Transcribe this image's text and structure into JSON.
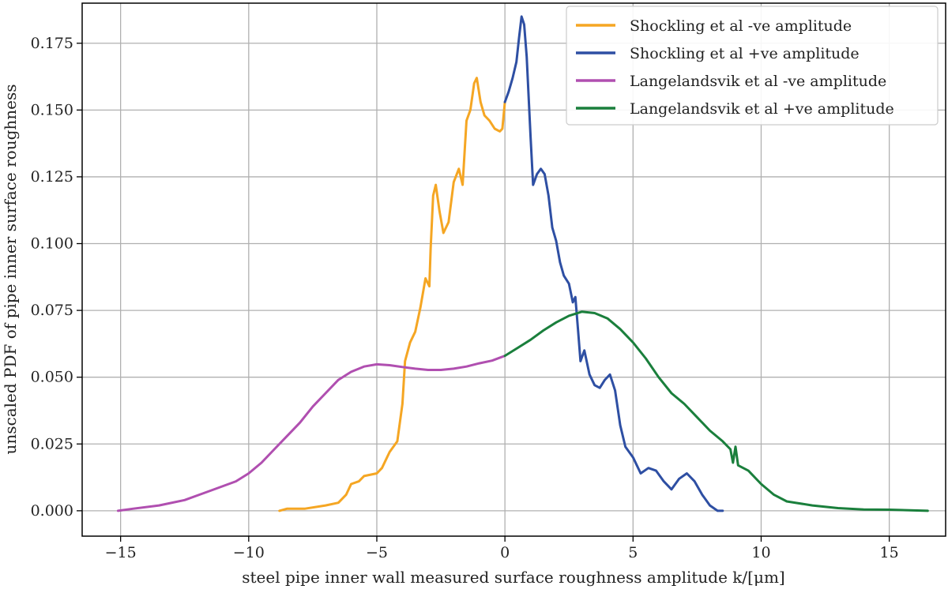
{
  "chart_data": {
    "type": "line",
    "xlabel": "steel pipe inner wall measured surface roughness amplitude k/[μm]",
    "ylabel": "unscaled PDF of pipe inner surface roughness",
    "xlim": [
      -16.5,
      17.2
    ],
    "ylim": [
      -0.0095,
      0.19
    ],
    "xticks": [
      -15,
      -10,
      -5,
      0,
      5,
      10,
      15
    ],
    "xtick_labels": [
      "−15",
      "−10",
      "−5",
      "0",
      "5",
      "10",
      "15"
    ],
    "yticks": [
      0.0,
      0.025,
      0.05,
      0.075,
      0.1,
      0.125,
      0.15,
      0.175
    ],
    "ytick_labels": [
      "0.000",
      "0.025",
      "0.050",
      "0.075",
      "0.100",
      "0.125",
      "0.150",
      "0.175"
    ],
    "grid": true,
    "legend_position": "top-right",
    "series": [
      {
        "name": "Shockling et al -ve amplitude",
        "color": "#f5a623",
        "points": [
          [
            -8.8,
            0.0
          ],
          [
            -8.5,
            0.0008
          ],
          [
            -7.8,
            0.0008
          ],
          [
            -7.0,
            0.002
          ],
          [
            -6.5,
            0.003
          ],
          [
            -6.2,
            0.006
          ],
          [
            -6.0,
            0.01
          ],
          [
            -5.7,
            0.011
          ],
          [
            -5.5,
            0.013
          ],
          [
            -5.0,
            0.014
          ],
          [
            -4.8,
            0.016
          ],
          [
            -4.5,
            0.022
          ],
          [
            -4.2,
            0.026
          ],
          [
            -4.0,
            0.04
          ],
          [
            -3.9,
            0.056
          ],
          [
            -3.7,
            0.063
          ],
          [
            -3.5,
            0.067
          ],
          [
            -3.3,
            0.076
          ],
          [
            -3.1,
            0.087
          ],
          [
            -2.95,
            0.084
          ],
          [
            -2.9,
            0.098
          ],
          [
            -2.8,
            0.118
          ],
          [
            -2.7,
            0.122
          ],
          [
            -2.55,
            0.112
          ],
          [
            -2.4,
            0.104
          ],
          [
            -2.2,
            0.108
          ],
          [
            -2.0,
            0.123
          ],
          [
            -1.8,
            0.128
          ],
          [
            -1.65,
            0.122
          ],
          [
            -1.5,
            0.146
          ],
          [
            -1.35,
            0.15
          ],
          [
            -1.2,
            0.16
          ],
          [
            -1.1,
            0.162
          ],
          [
            -0.95,
            0.153
          ],
          [
            -0.8,
            0.148
          ],
          [
            -0.6,
            0.146
          ],
          [
            -0.4,
            0.143
          ],
          [
            -0.2,
            0.142
          ],
          [
            -0.1,
            0.143
          ],
          [
            0.0,
            0.153
          ]
        ]
      },
      {
        "name": "Shockling et al +ve amplitude",
        "color": "#2e4fa3",
        "points": [
          [
            0.0,
            0.153
          ],
          [
            0.15,
            0.157
          ],
          [
            0.3,
            0.162
          ],
          [
            0.45,
            0.168
          ],
          [
            0.55,
            0.177
          ],
          [
            0.65,
            0.185
          ],
          [
            0.75,
            0.182
          ],
          [
            0.85,
            0.17
          ],
          [
            1.0,
            0.14
          ],
          [
            1.1,
            0.122
          ],
          [
            1.25,
            0.126
          ],
          [
            1.4,
            0.128
          ],
          [
            1.55,
            0.126
          ],
          [
            1.7,
            0.118
          ],
          [
            1.85,
            0.106
          ],
          [
            2.0,
            0.101
          ],
          [
            2.15,
            0.093
          ],
          [
            2.3,
            0.088
          ],
          [
            2.5,
            0.085
          ],
          [
            2.65,
            0.078
          ],
          [
            2.75,
            0.08
          ],
          [
            2.85,
            0.068
          ],
          [
            2.95,
            0.056
          ],
          [
            3.1,
            0.06
          ],
          [
            3.3,
            0.051
          ],
          [
            3.5,
            0.047
          ],
          [
            3.7,
            0.046
          ],
          [
            3.9,
            0.049
          ],
          [
            4.1,
            0.051
          ],
          [
            4.3,
            0.045
          ],
          [
            4.5,
            0.032
          ],
          [
            4.7,
            0.024
          ],
          [
            5.0,
            0.02
          ],
          [
            5.3,
            0.014
          ],
          [
            5.6,
            0.016
          ],
          [
            5.9,
            0.015
          ],
          [
            6.2,
            0.011
          ],
          [
            6.5,
            0.008
          ],
          [
            6.8,
            0.012
          ],
          [
            7.1,
            0.014
          ],
          [
            7.4,
            0.011
          ],
          [
            7.7,
            0.006
          ],
          [
            8.0,
            0.002
          ],
          [
            8.3,
            0.0
          ],
          [
            8.5,
            0.0
          ]
        ]
      },
      {
        "name": "Langelandsvik et al -ve amplitude",
        "color": "#b04fb0",
        "points": [
          [
            -15.1,
            0.0
          ],
          [
            -14.5,
            0.0008
          ],
          [
            -13.5,
            0.002
          ],
          [
            -12.5,
            0.004
          ],
          [
            -11.5,
            0.0075
          ],
          [
            -10.5,
            0.011
          ],
          [
            -10.0,
            0.014
          ],
          [
            -9.5,
            0.018
          ],
          [
            -9.0,
            0.023
          ],
          [
            -8.5,
            0.028
          ],
          [
            -8.0,
            0.033
          ],
          [
            -7.5,
            0.039
          ],
          [
            -7.0,
            0.044
          ],
          [
            -6.5,
            0.049
          ],
          [
            -6.0,
            0.052
          ],
          [
            -5.5,
            0.054
          ],
          [
            -5.0,
            0.0548
          ],
          [
            -4.5,
            0.0545
          ],
          [
            -4.0,
            0.0538
          ],
          [
            -3.5,
            0.0532
          ],
          [
            -3.0,
            0.0527
          ],
          [
            -2.5,
            0.0527
          ],
          [
            -2.0,
            0.0532
          ],
          [
            -1.5,
            0.054
          ],
          [
            -1.0,
            0.0552
          ],
          [
            -0.5,
            0.0562
          ],
          [
            0.0,
            0.058
          ]
        ]
      },
      {
        "name": "Langelandsvik et al +ve amplitude",
        "color": "#1a7f3c",
        "points": [
          [
            0.0,
            0.058
          ],
          [
            0.5,
            0.061
          ],
          [
            1.0,
            0.064
          ],
          [
            1.5,
            0.0675
          ],
          [
            2.0,
            0.0705
          ],
          [
            2.5,
            0.073
          ],
          [
            3.0,
            0.0745
          ],
          [
            3.5,
            0.074
          ],
          [
            4.0,
            0.072
          ],
          [
            4.5,
            0.068
          ],
          [
            5.0,
            0.063
          ],
          [
            5.5,
            0.057
          ],
          [
            6.0,
            0.05
          ],
          [
            6.5,
            0.044
          ],
          [
            7.0,
            0.04
          ],
          [
            7.5,
            0.035
          ],
          [
            8.0,
            0.03
          ],
          [
            8.5,
            0.026
          ],
          [
            8.8,
            0.023
          ],
          [
            8.9,
            0.018
          ],
          [
            9.0,
            0.024
          ],
          [
            9.1,
            0.017
          ],
          [
            9.5,
            0.015
          ],
          [
            10.0,
            0.01
          ],
          [
            10.5,
            0.006
          ],
          [
            11.0,
            0.0035
          ],
          [
            12.0,
            0.002
          ],
          [
            13.0,
            0.001
          ],
          [
            14.0,
            0.0005
          ],
          [
            15.0,
            0.0004
          ],
          [
            16.5,
            0.0
          ]
        ]
      }
    ]
  }
}
